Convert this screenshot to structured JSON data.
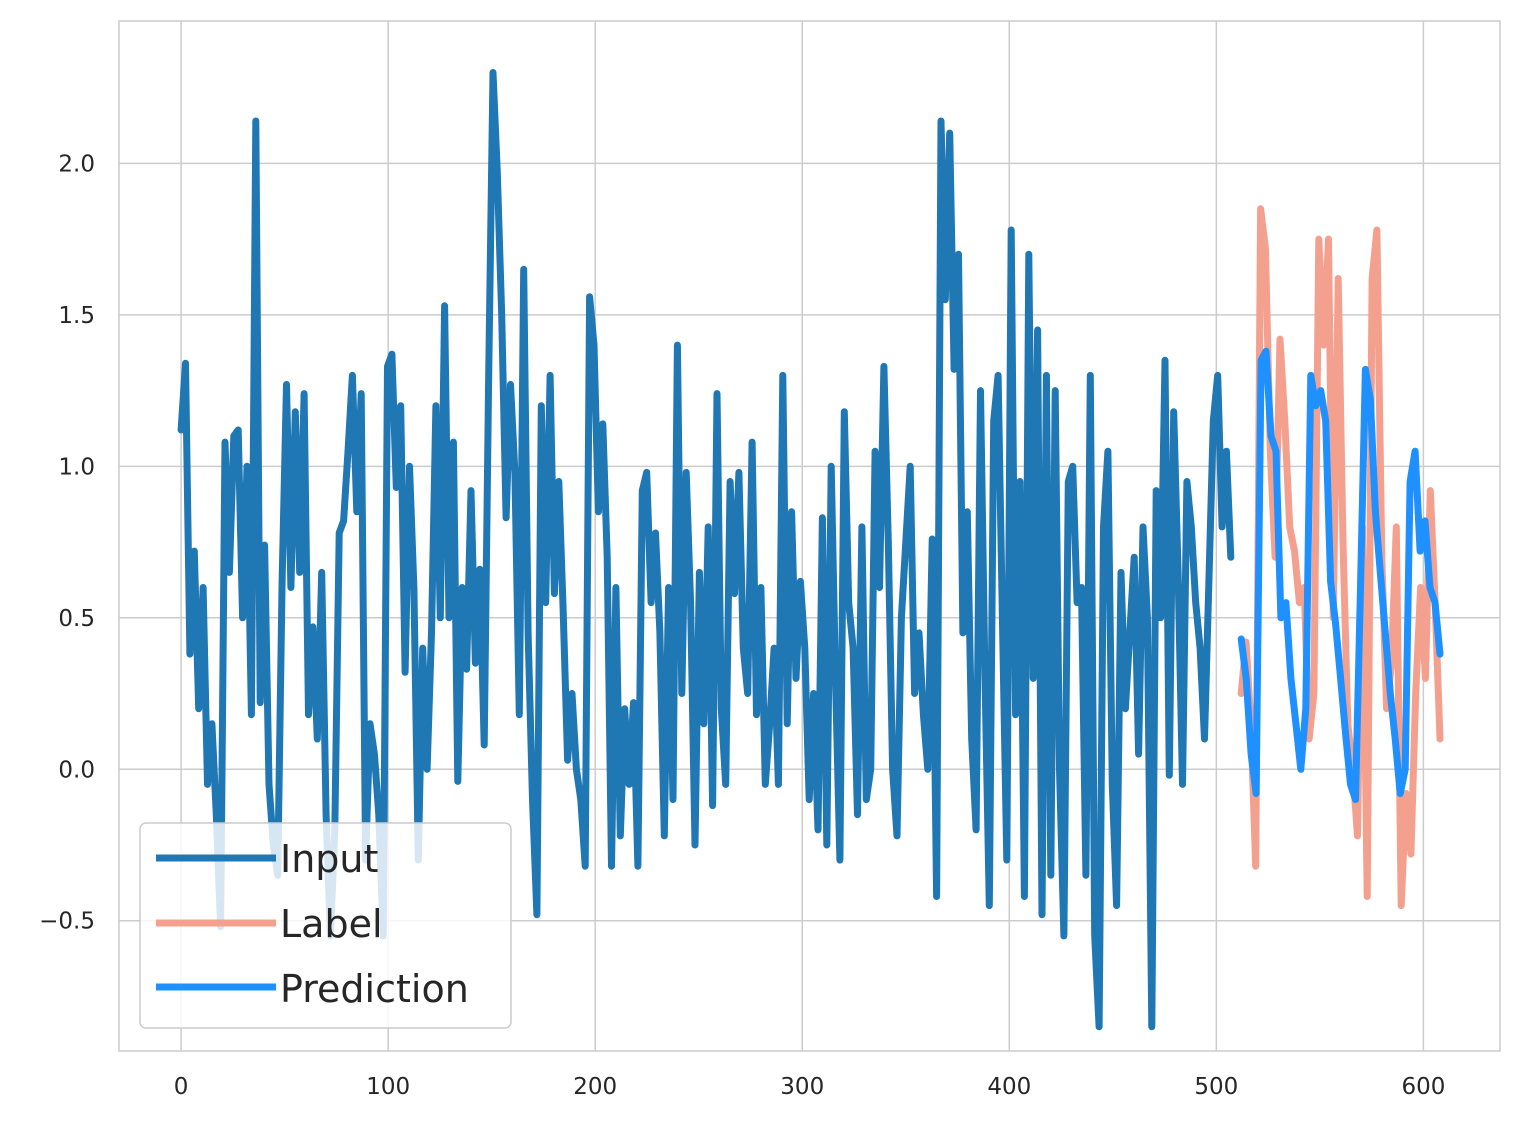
{
  "chart_data": {
    "type": "line",
    "title": "",
    "xlabel": "",
    "ylabel": "",
    "xlim": [
      -30,
      637
    ],
    "ylim": [
      -0.93,
      2.47
    ],
    "xticks": [
      0,
      100,
      200,
      300,
      400,
      500,
      600
    ],
    "xtick_labels": [
      "0",
      "100",
      "200",
      "300",
      "400",
      "500",
      "600"
    ],
    "yticks": [
      -0.5,
      0.0,
      0.5,
      1.0,
      1.5,
      2.0
    ],
    "ytick_labels": [
      "−0.5",
      "0.0",
      "0.5",
      "1.0",
      "1.5",
      "2.0"
    ],
    "grid": true,
    "legend": {
      "position": "lower-left"
    },
    "series": [
      {
        "name": "Input",
        "color": "#1f77b4",
        "x_start": 0,
        "values": [
          1.12,
          1.34,
          0.38,
          0.72,
          0.2,
          0.6,
          -0.05,
          0.15,
          -0.15,
          -0.52,
          1.08,
          0.65,
          1.1,
          1.12,
          0.5,
          1.0,
          0.18,
          2.14,
          0.22,
          0.74,
          -0.05,
          -0.25,
          -0.35,
          0.62,
          1.27,
          0.6,
          1.18,
          0.65,
          1.24,
          0.18,
          0.47,
          0.1,
          0.65,
          -0.15,
          -0.55,
          -0.2,
          0.78,
          0.82,
          1.05,
          1.3,
          0.85,
          1.24,
          -0.3,
          0.15,
          0.05,
          -0.15,
          -0.55,
          1.33,
          1.37,
          0.93,
          1.2,
          0.32,
          1.0,
          0.6,
          -0.3,
          0.4,
          0.0,
          0.45,
          1.2,
          0.5,
          1.53,
          0.5,
          1.08,
          -0.04,
          0.6,
          0.33,
          0.92,
          0.35,
          0.66,
          0.08,
          1.28,
          2.3,
          1.97,
          1.5,
          0.83,
          1.27,
          0.98,
          0.18,
          1.65,
          0.45,
          -0.1,
          -0.48,
          1.2,
          0.55,
          1.3,
          0.58,
          0.95,
          0.52,
          0.03,
          0.25,
          0.0,
          -0.1,
          -0.32,
          1.56,
          1.4,
          0.85,
          1.14,
          0.7,
          -0.32,
          0.6,
          -0.22,
          0.2,
          -0.05,
          0.22,
          -0.32,
          0.92,
          0.98,
          0.55,
          0.78,
          0.45,
          -0.22,
          0.6,
          -0.1,
          1.4,
          0.25,
          0.98,
          0.55,
          -0.25,
          0.65,
          0.15,
          0.8,
          -0.12,
          1.24,
          0.2,
          -0.05,
          0.95,
          0.58,
          0.98,
          0.4,
          0.25,
          1.08,
          0.18,
          0.6,
          -0.05,
          0.15,
          0.4,
          -0.05,
          1.3,
          0.15,
          0.85,
          0.3,
          0.62,
          0.4,
          -0.1,
          0.25,
          -0.2,
          0.83,
          -0.25,
          1.0,
          0.3,
          -0.3,
          1.18,
          0.55,
          0.4,
          -0.15,
          0.8,
          -0.1,
          0.0,
          1.05,
          0.6,
          1.33,
          0.75,
          0.0,
          -0.22,
          0.5,
          0.75,
          1.0,
          0.25,
          0.45,
          0.18,
          0.0,
          0.76,
          -0.42,
          2.14,
          1.55,
          2.1,
          1.32,
          1.7,
          0.45,
          0.85,
          0.1,
          -0.2,
          1.25,
          0.32,
          -0.45,
          1.15,
          1.3,
          0.5,
          -0.3,
          1.78,
          0.18,
          0.95,
          -0.42,
          1.7,
          0.3,
          1.45,
          -0.48,
          1.3,
          -0.35,
          1.25,
          0.0,
          -0.55,
          0.95,
          1.0,
          0.55,
          0.6,
          -0.35,
          1.3,
          -0.55,
          -0.85,
          0.8,
          1.05,
          -0.05,
          -0.45,
          0.65,
          0.2,
          0.45,
          0.7,
          0.05,
          0.8,
          0.5,
          -0.85,
          0.92,
          0.5,
          1.35,
          -0.02,
          1.18,
          0.65,
          -0.05,
          0.95,
          0.8,
          0.55,
          0.4,
          0.1,
          0.62,
          1.15,
          1.3,
          0.8,
          1.05,
          0.7
        ]
      },
      {
        "name": "Label",
        "color": "#f4a08f",
        "x_start": 512,
        "values": [
          0.25,
          0.42,
          0.15,
          -0.32,
          1.85,
          1.72,
          1.05,
          0.7,
          1.42,
          1.15,
          0.8,
          0.72,
          0.55,
          0.6,
          0.1,
          0.25,
          1.75,
          1.4,
          1.75,
          0.5,
          1.62,
          0.75,
          0.15,
          0.0,
          -0.22,
          0.8,
          -0.42,
          1.62,
          1.78,
          0.7,
          0.2,
          0.35,
          0.8,
          -0.45,
          -0.08,
          -0.28,
          0.25,
          0.6,
          0.3,
          0.92,
          0.55,
          0.1
        ]
      },
      {
        "name": "Prediction",
        "color": "#1e90ff",
        "x_start": 512,
        "values": [
          0.43,
          0.3,
          0.05,
          -0.08,
          1.35,
          1.38,
          1.1,
          1.05,
          0.5,
          0.55,
          0.3,
          0.15,
          0.0,
          0.2,
          1.3,
          1.2,
          1.25,
          1.15,
          0.62,
          0.48,
          0.3,
          0.12,
          -0.05,
          -0.1,
          0.6,
          1.32,
          1.22,
          0.85,
          0.65,
          0.45,
          0.25,
          0.1,
          -0.08,
          0.0,
          0.95,
          1.05,
          0.72,
          0.82,
          0.6,
          0.55,
          0.38
        ]
      }
    ]
  }
}
